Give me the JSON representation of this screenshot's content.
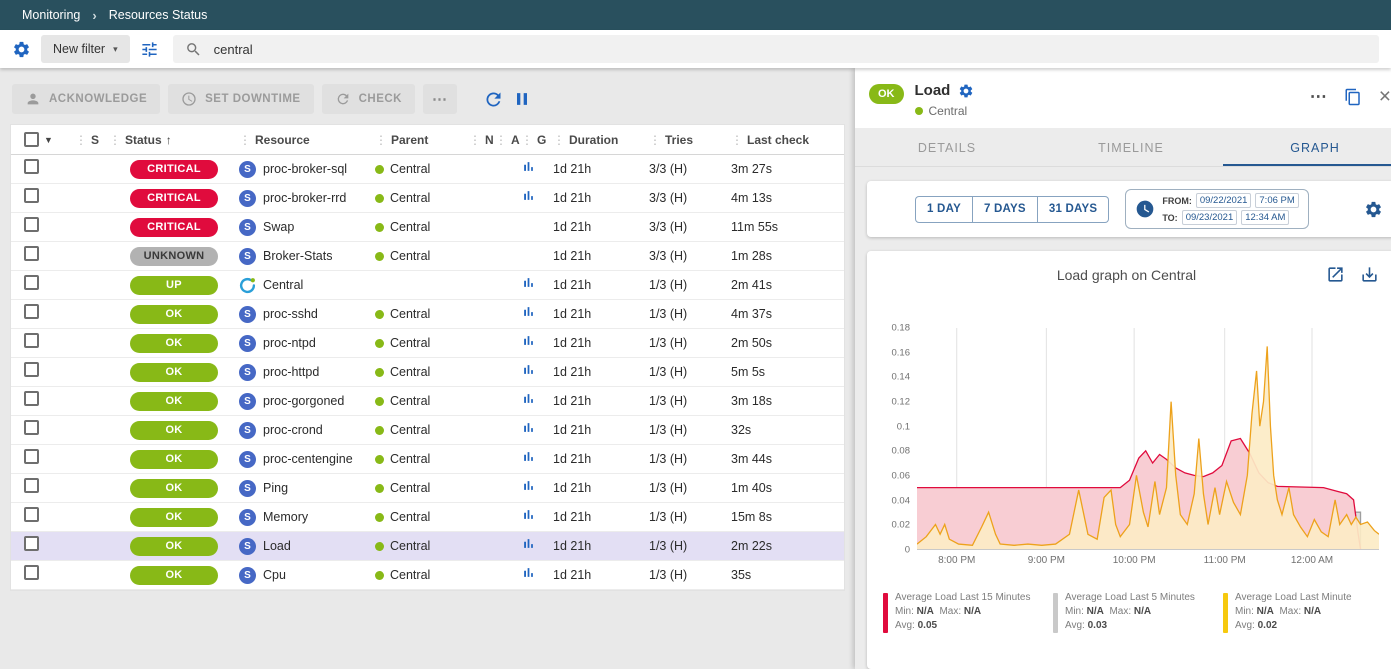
{
  "breadcrumb": {
    "items": [
      "Monitoring",
      "Resources Status"
    ]
  },
  "filter": {
    "new_filter_label": "New filter",
    "search_value": "central"
  },
  "toolbar": {
    "acknowledge_label": "ACKNOWLEDGE",
    "set_downtime_label": "SET DOWNTIME",
    "check_label": "CHECK",
    "more_label": "⋯"
  },
  "table": {
    "columns": [
      {
        "label": "S"
      },
      {
        "label": "Status",
        "sorted": true
      },
      {
        "label": "Resource"
      },
      {
        "label": "Parent"
      },
      {
        "label": "N"
      },
      {
        "label": "A"
      },
      {
        "label": "G"
      },
      {
        "label": "Duration"
      },
      {
        "label": "Tries"
      },
      {
        "label": "Last check"
      }
    ],
    "rows": [
      {
        "status": "CRITICAL",
        "type": "service",
        "resource": "proc-broker-sql",
        "parent": "Central",
        "graph": true,
        "duration": "1d 21h",
        "tries": "3/3 (H)",
        "last_check": "3m 27s",
        "selected": false
      },
      {
        "status": "CRITICAL",
        "type": "service",
        "resource": "proc-broker-rrd",
        "parent": "Central",
        "graph": true,
        "duration": "1d 21h",
        "tries": "3/3 (H)",
        "last_check": "4m 13s",
        "selected": false
      },
      {
        "status": "CRITICAL",
        "type": "service",
        "resource": "Swap",
        "parent": "Central",
        "graph": false,
        "duration": "1d 21h",
        "tries": "3/3 (H)",
        "last_check": "11m 55s",
        "selected": false
      },
      {
        "status": "UNKNOWN",
        "type": "service",
        "resource": "Broker-Stats",
        "parent": "Central",
        "graph": false,
        "duration": "1d 21h",
        "tries": "3/3 (H)",
        "last_check": "1m 28s",
        "selected": false
      },
      {
        "status": "UP",
        "type": "host",
        "resource": "Central",
        "parent": "",
        "graph": true,
        "duration": "1d 21h",
        "tries": "1/3 (H)",
        "last_check": "2m 41s",
        "selected": false
      },
      {
        "status": "OK",
        "type": "service",
        "resource": "proc-sshd",
        "parent": "Central",
        "graph": true,
        "duration": "1d 21h",
        "tries": "1/3 (H)",
        "last_check": "4m 37s",
        "selected": false
      },
      {
        "status": "OK",
        "type": "service",
        "resource": "proc-ntpd",
        "parent": "Central",
        "graph": true,
        "duration": "1d 21h",
        "tries": "1/3 (H)",
        "last_check": "2m 50s",
        "selected": false
      },
      {
        "status": "OK",
        "type": "service",
        "resource": "proc-httpd",
        "parent": "Central",
        "graph": true,
        "duration": "1d 21h",
        "tries": "1/3 (H)",
        "last_check": "5m 5s",
        "selected": false
      },
      {
        "status": "OK",
        "type": "service",
        "resource": "proc-gorgoned",
        "parent": "Central",
        "graph": true,
        "duration": "1d 21h",
        "tries": "1/3 (H)",
        "last_check": "3m 18s",
        "selected": false
      },
      {
        "status": "OK",
        "type": "service",
        "resource": "proc-crond",
        "parent": "Central",
        "graph": true,
        "duration": "1d 21h",
        "tries": "1/3 (H)",
        "last_check": "32s",
        "selected": false
      },
      {
        "status": "OK",
        "type": "service",
        "resource": "proc-centengine",
        "parent": "Central",
        "graph": true,
        "duration": "1d 21h",
        "tries": "1/3 (H)",
        "last_check": "3m 44s",
        "selected": false
      },
      {
        "status": "OK",
        "type": "service",
        "resource": "Ping",
        "parent": "Central",
        "graph": true,
        "duration": "1d 21h",
        "tries": "1/3 (H)",
        "last_check": "1m 40s",
        "selected": false
      },
      {
        "status": "OK",
        "type": "service",
        "resource": "Memory",
        "parent": "Central",
        "graph": true,
        "duration": "1d 21h",
        "tries": "1/3 (H)",
        "last_check": "15m 8s",
        "selected": false
      },
      {
        "status": "OK",
        "type": "service",
        "resource": "Load",
        "parent": "Central",
        "graph": true,
        "duration": "1d 21h",
        "tries": "1/3 (H)",
        "last_check": "2m 22s",
        "selected": true
      },
      {
        "status": "OK",
        "type": "service",
        "resource": "Cpu",
        "parent": "Central",
        "graph": true,
        "duration": "1d 21h",
        "tries": "1/3 (H)",
        "last_check": "35s",
        "selected": false
      }
    ]
  },
  "panel": {
    "status": "OK",
    "title": "Load",
    "subtitle": "Central",
    "tabs": [
      "DETAILS",
      "TIMELINE",
      "GRAPH"
    ],
    "active_tab": "GRAPH",
    "time_buttons": [
      "1 DAY",
      "7 DAYS",
      "31 DAYS"
    ],
    "from_label": "FROM:",
    "from_date": "09/22/2021",
    "from_time": "7:06 PM",
    "to_label": "TO:",
    "to_date": "09/23/2021",
    "to_time": "12:34 AM"
  },
  "legend_labels": {
    "min": "Min:",
    "max": "Max:",
    "avg": "Avg:"
  },
  "colors": {
    "header_bar": "#29505e",
    "accent_blue": "#2065c0",
    "navy": "#255891",
    "ok_green": "#88b917",
    "selected_row": "#e3dff4",
    "service_icon": "#4668c5",
    "status": {
      "CRITICAL": {
        "bg": "#e00b3d",
        "fg": "#ffffff"
      },
      "UNKNOWN": {
        "bg": "#b2b2b2",
        "fg": "#3a3a3a"
      },
      "UP": {
        "bg": "#88b917",
        "fg": "#ffffff"
      },
      "OK": {
        "bg": "#88b917",
        "fg": "#ffffff"
      }
    }
  },
  "chart_data": {
    "type": "area",
    "title": "Load graph on Central",
    "ylim": [
      0,
      0.18
    ],
    "y_ticks": [
      "0",
      "0.02",
      "0.04",
      "0.06",
      "0.08",
      "0.1",
      "0.12",
      "0.14",
      "0.16",
      "0.18"
    ],
    "x_ticks": [
      {
        "label": "8:00 PM",
        "pos": 0.086
      },
      {
        "label": "9:00 PM",
        "pos": 0.28
      },
      {
        "label": "10:00 PM",
        "pos": 0.47
      },
      {
        "label": "11:00 PM",
        "pos": 0.666
      },
      {
        "label": "12:00 AM",
        "pos": 0.855
      }
    ],
    "grid": "vertical",
    "legend_position": "bottom",
    "draw_order": [
      1,
      0,
      2
    ],
    "series": [
      {
        "name": "Average Load Last 15 Minutes",
        "color": "#e00b3d",
        "fill": "#f8cdd3",
        "fill_opacity": 1,
        "swatch": "#e00b3d",
        "min": "N/A",
        "max": "N/A",
        "avg": "0.05",
        "points": [
          [
            0,
            0.05
          ],
          [
            44,
            0.05
          ],
          [
            46,
            0.056
          ],
          [
            48,
            0.074
          ],
          [
            49.5,
            0.08
          ],
          [
            51,
            0.07
          ],
          [
            52.5,
            0.077
          ],
          [
            54,
            0.073
          ],
          [
            56,
            0.066
          ],
          [
            58,
            0.062
          ],
          [
            60,
            0.06
          ],
          [
            62,
            0.059
          ],
          [
            64,
            0.062
          ],
          [
            66,
            0.068
          ],
          [
            68,
            0.088
          ],
          [
            70,
            0.09
          ],
          [
            72,
            0.078
          ],
          [
            74,
            0.062
          ],
          [
            76,
            0.054
          ],
          [
            78,
            0.051
          ],
          [
            88,
            0.05
          ],
          [
            91,
            0.047
          ],
          [
            93,
            0.045
          ],
          [
            94.5,
            0.04
          ],
          [
            95.5,
            0.012
          ],
          [
            96,
            0
          ]
        ]
      },
      {
        "name": "Average Load Last 5 Minutes",
        "color": "#9e9e9e",
        "fill": "#dedede",
        "fill_opacity": 1,
        "swatch": "#c9c9c9",
        "min": "N/A",
        "max": "N/A",
        "avg": "0.03",
        "points": [
          [
            0,
            0.03
          ],
          [
            96,
            0.03
          ],
          [
            96,
            0
          ]
        ]
      },
      {
        "name": "Average Load Last Minute",
        "color": "#eda21c",
        "fill": "#fcebc5",
        "fill_opacity": 0.92,
        "swatch": "#f6c90e",
        "min": "N/A",
        "max": "N/A",
        "avg": "0.02",
        "points": [
          [
            0,
            0.004
          ],
          [
            2,
            0.01
          ],
          [
            4,
            0.02
          ],
          [
            5,
            0.012
          ],
          [
            6,
            0.02
          ],
          [
            7,
            0.008
          ],
          [
            9,
            0.004
          ],
          [
            12,
            0.003
          ],
          [
            14,
            0.018
          ],
          [
            15.5,
            0.03
          ],
          [
            17,
            0.012
          ],
          [
            18,
            0.004
          ],
          [
            21,
            0.003
          ],
          [
            24,
            0.004
          ],
          [
            27,
            0.003
          ],
          [
            30,
            0.004
          ],
          [
            33,
            0.012
          ],
          [
            35,
            0.048
          ],
          [
            36,
            0.03
          ],
          [
            37,
            0.012
          ],
          [
            39,
            0.008
          ],
          [
            40.5,
            0.042
          ],
          [
            42,
            0.048
          ],
          [
            43,
            0.02
          ],
          [
            44,
            0.01
          ],
          [
            46,
            0.02
          ],
          [
            47.5,
            0.06
          ],
          [
            49,
            0.03
          ],
          [
            50,
            0.018
          ],
          [
            51.5,
            0.055
          ],
          [
            52.5,
            0.028
          ],
          [
            54,
            0.05
          ],
          [
            55,
            0.12
          ],
          [
            56,
            0.06
          ],
          [
            57,
            0.028
          ],
          [
            58.5,
            0.02
          ],
          [
            60,
            0.045
          ],
          [
            61,
            0.09
          ],
          [
            62,
            0.045
          ],
          [
            63,
            0.02
          ],
          [
            64.5,
            0.05
          ],
          [
            65.5,
            0.028
          ],
          [
            67,
            0.055
          ],
          [
            68.5,
            0.038
          ],
          [
            70,
            0.028
          ],
          [
            71.5,
            0.06
          ],
          [
            72.5,
            0.11
          ],
          [
            73.5,
            0.145
          ],
          [
            74.2,
            0.1
          ],
          [
            75,
            0.12
          ],
          [
            75.8,
            0.165
          ],
          [
            76.5,
            0.1
          ],
          [
            77.2,
            0.06
          ],
          [
            78,
            0.04
          ],
          [
            79,
            0.028
          ],
          [
            80.5,
            0.05
          ],
          [
            81.5,
            0.028
          ],
          [
            83,
            0.018
          ],
          [
            84.5,
            0.01
          ],
          [
            86,
            0.024
          ],
          [
            87.5,
            0.014
          ],
          [
            89,
            0.01
          ],
          [
            90.5,
            0.04
          ],
          [
            91.5,
            0.02
          ],
          [
            93,
            0.028
          ],
          [
            94,
            0.02
          ],
          [
            95,
            0.026
          ],
          [
            96,
            0.02
          ],
          [
            97.5,
            0.022
          ],
          [
            99,
            0.015
          ],
          [
            100,
            0.012
          ]
        ]
      }
    ]
  }
}
